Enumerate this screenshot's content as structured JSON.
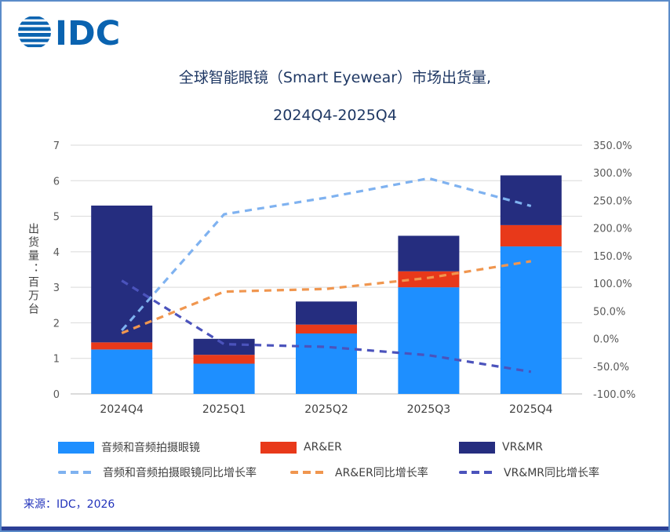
{
  "logo_text": "IDC",
  "source": "来源：IDC，2026",
  "colors": {
    "brand_blue": "#0A63B0",
    "title_text": "#1F3864",
    "source_text": "#2233BB",
    "border": "#5B8BC9",
    "bottom_bar": "#2B3F96",
    "axis_text": "#595959",
    "label_text": "#404040",
    "grid_line": "#D9D9D9",
    "axis_line": "#B7B7B7"
  },
  "chart_data": {
    "type": "combo",
    "title": "全球智能眼镜（Smart Eyewear）市场出货量,",
    "subtitle": "2024Q4-2025Q4",
    "categories": [
      "2024Q4",
      "2025Q1",
      "2025Q2",
      "2025Q3",
      "2025Q4"
    ],
    "stacked": true,
    "bar_series": [
      {
        "name": "音频和音频拍摄眼镜",
        "color": "#1E8FFF",
        "values": [
          1.25,
          0.85,
          1.7,
          3.0,
          4.15
        ]
      },
      {
        "name": "AR&ER",
        "color": "#E8391A",
        "values": [
          0.2,
          0.25,
          0.25,
          0.45,
          0.6
        ]
      },
      {
        "name": "VR&MR",
        "color": "#252D7F",
        "values": [
          3.85,
          0.45,
          0.65,
          1.0,
          1.4
        ]
      }
    ],
    "line_series": [
      {
        "name": "音频和音频拍摄眼镜同比增长率",
        "color": "#7FB2F0",
        "values_pct": [
          15,
          225,
          255,
          290,
          240
        ]
      },
      {
        "name": "AR&ER同比增长率",
        "color": "#F0964F",
        "values_pct": [
          10,
          85,
          90,
          110,
          140
        ]
      },
      {
        "name": "VR&MR同比增长率",
        "color": "#4B53BC",
        "values_pct": [
          105,
          -10,
          -15,
          -30,
          -60
        ]
      }
    ],
    "left_axis": {
      "title": "出货量：百万台",
      "min": 0,
      "max": 7,
      "step": 1,
      "ticks": [
        "0",
        "1",
        "2",
        "3",
        "4",
        "5",
        "6",
        "7"
      ]
    },
    "right_axis": {
      "min": -100,
      "max": 350,
      "step": 50,
      "ticks": [
        "-100.0%",
        "-50.0%",
        "0.0%",
        "50.0%",
        "100.0%",
        "150.0%",
        "200.0%",
        "250.0%",
        "300.0%",
        "350.0%"
      ]
    },
    "grid": true,
    "legend_position": "bottom"
  }
}
